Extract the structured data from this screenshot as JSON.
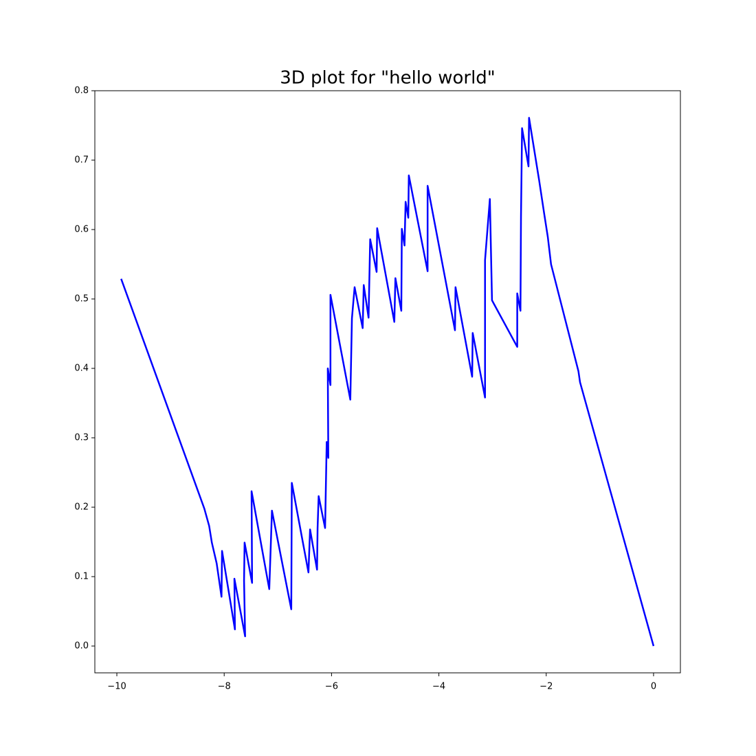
{
  "chart_data": {
    "type": "line",
    "title": "3D plot for \"hello world\"",
    "x": [
      -9.92,
      -8.37,
      -8.28,
      -8.23,
      -8.14,
      -8.05,
      -8.04,
      -7.8,
      -7.81,
      -7.61,
      -7.63,
      -7.62,
      -7.48,
      -7.49,
      -7.16,
      -7.11,
      -6.75,
      -6.74,
      -6.43,
      -6.4,
      -6.27,
      -6.26,
      -6.24,
      -6.12,
      -6.09,
      -6.06,
      -6.07,
      -6.02,
      -6.02,
      -5.65,
      -5.62,
      -5.57,
      -5.42,
      -5.4,
      -5.31,
      -5.28,
      -5.16,
      -5.15,
      -4.83,
      -4.81,
      -4.7,
      -4.69,
      -4.64,
      -4.62,
      -4.57,
      -4.56,
      -4.21,
      -4.21,
      -3.7,
      -3.69,
      -3.38,
      -3.37,
      -3.14,
      -3.14,
      -3.05,
      -3.01,
      -2.54,
      -2.54,
      -2.48,
      -2.47,
      -2.45,
      -2.33,
      -2.32,
      -2.13,
      -2.04,
      -1.97,
      -1.91,
      -1.4,
      -1.37,
      0
    ],
    "values": [
      0.529,
      0.198,
      0.173,
      0.149,
      0.119,
      0.071,
      0.137,
      0.024,
      0.097,
      0.014,
      0.094,
      0.149,
      0.091,
      0.223,
      0.082,
      0.195,
      0.053,
      0.235,
      0.106,
      0.168,
      0.11,
      0.17,
      0.216,
      0.17,
      0.294,
      0.271,
      0.4,
      0.376,
      0.506,
      0.355,
      0.472,
      0.517,
      0.458,
      0.52,
      0.473,
      0.586,
      0.539,
      0.602,
      0.467,
      0.53,
      0.483,
      0.601,
      0.577,
      0.64,
      0.617,
      0.678,
      0.54,
      0.663,
      0.455,
      0.517,
      0.388,
      0.451,
      0.358,
      0.556,
      0.644,
      0.498,
      0.431,
      0.508,
      0.483,
      0.619,
      0.746,
      0.691,
      0.761,
      0.67,
      0.624,
      0.589,
      0.55,
      0.396,
      0.38,
      0
    ],
    "color": "#0000ff",
    "xlim": [
      -10.41,
      0.5
    ],
    "ylim": [
      -0.0386,
      0.8
    ],
    "xticks": [
      {
        "value": -10,
        "label": "−10"
      },
      {
        "value": -8,
        "label": "−8"
      },
      {
        "value": -6,
        "label": "−6"
      },
      {
        "value": -4,
        "label": "−4"
      },
      {
        "value": -2,
        "label": "−2"
      },
      0
    ],
    "yticks": [
      {
        "value": 0,
        "label": "0.0"
      },
      0.1,
      0.2,
      0.3,
      0.4,
      0.5,
      0.6,
      0.7,
      0.8
    ],
    "grid": false
  }
}
